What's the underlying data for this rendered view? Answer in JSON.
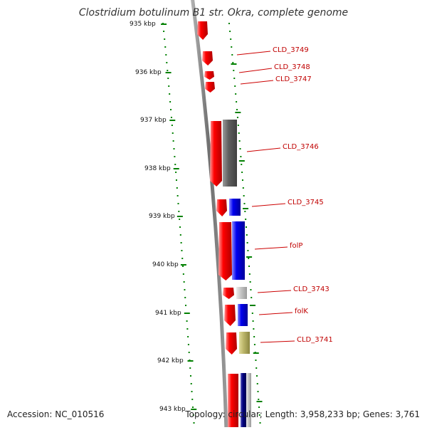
{
  "title": "Clostridium botulinum B1 str. Okra, complete genome",
  "accession_text": "Accession: NC_010516",
  "summary_text": "Topology: circular; Length: 3,958,233 bp; Genes: 3,761",
  "ticks": [
    "935 kbp",
    "936 kbp",
    "937 kbp",
    "938 kbp",
    "939 kbp",
    "940 kbp",
    "941 kbp",
    "942 kbp",
    "943 kbp"
  ],
  "genes": [
    "CLD_3749",
    "CLD_3748",
    "CLD_3747",
    "CLD_3746",
    "CLD_3745",
    "folP",
    "CLD_3743",
    "folK",
    "CLD_3741"
  ],
  "colors": {
    "cds": "#ff0000",
    "blue": "#0000ee",
    "grey": "#606060",
    "light_grey": "#c8c8c8",
    "khaki": "#bdb76b",
    "navy": "#000080",
    "tick": "#008000",
    "label": "#cc0000"
  }
}
